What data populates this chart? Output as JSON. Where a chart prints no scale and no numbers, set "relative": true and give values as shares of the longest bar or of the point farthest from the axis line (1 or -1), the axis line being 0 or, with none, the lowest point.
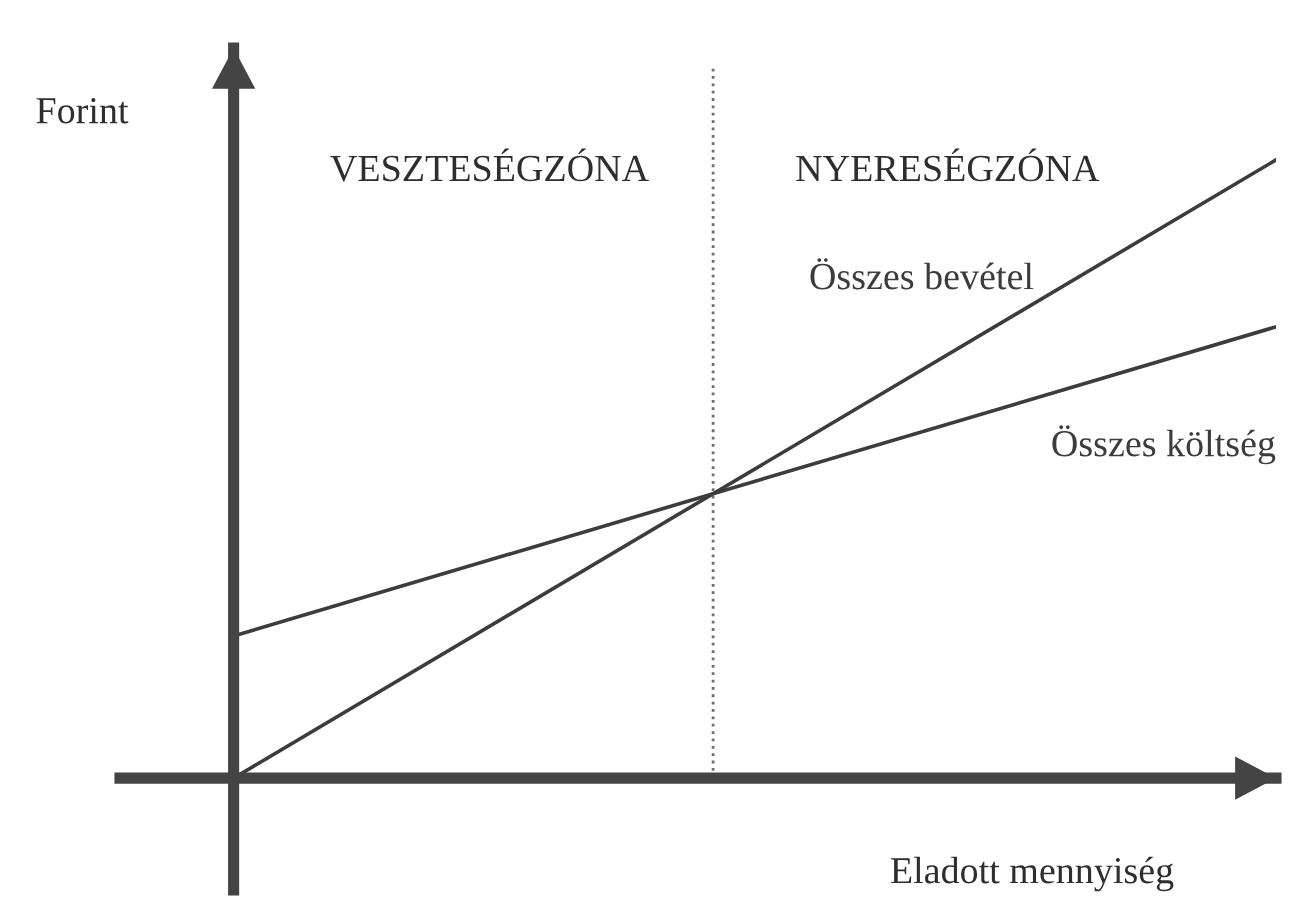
{
  "chart_data": {
    "type": "line",
    "relative": true,
    "xlabel": "Eladott mennyiség",
    "ylabel": "Forint",
    "categories": [
      null,
      null
    ],
    "series": [
      {
        "name": "Összes bevétel",
        "color": "#3c3c3c",
        "values": [
          0,
          1
        ]
      },
      {
        "name": "Összes költség",
        "color": "#3c3c3c",
        "values": [
          0.23,
          0.73
        ]
      }
    ],
    "annotations": [
      "VESZTESÉGZÓNA",
      "NYERESÉGZÓNA"
    ]
  }
}
